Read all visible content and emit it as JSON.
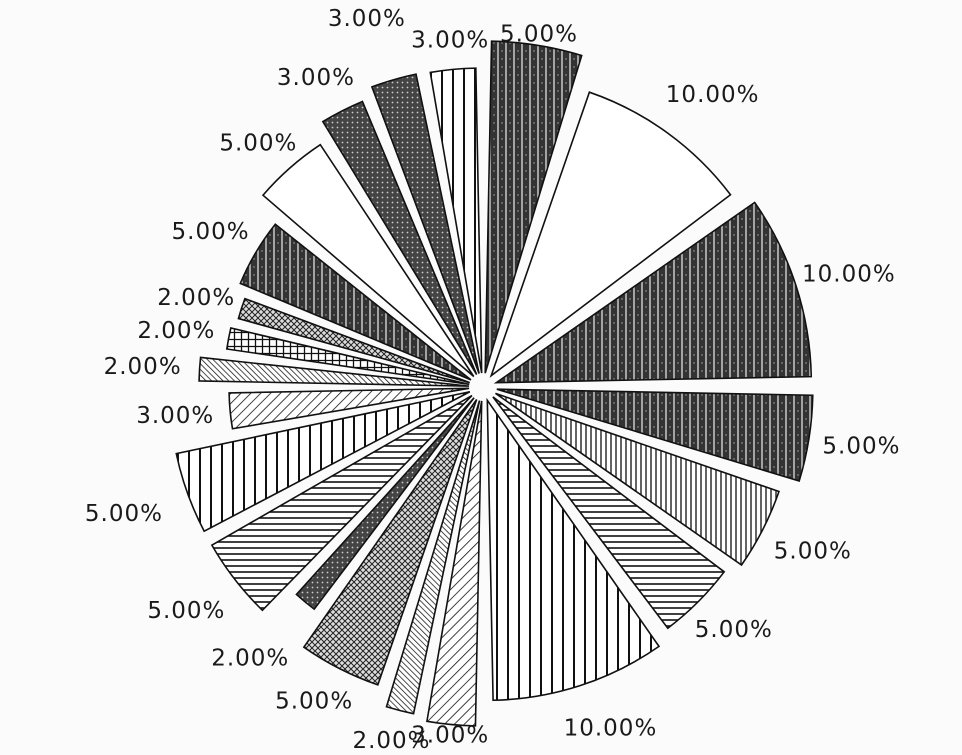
{
  "chart_data": {
    "type": "pie",
    "title": "",
    "slices": [
      {
        "label": "5.00%",
        "value": 5,
        "pattern": "dark-vertical"
      },
      {
        "label": "10.00%",
        "value": 10,
        "pattern": "white"
      },
      {
        "label": "10.00%",
        "value": 10,
        "pattern": "dark-vertical"
      },
      {
        "label": "5.00%",
        "value": 5,
        "pattern": "dark-vertical"
      },
      {
        "label": "5.00%",
        "value": 5,
        "pattern": "vertical-dense"
      },
      {
        "label": "5.00%",
        "value": 5,
        "pattern": "horizontal"
      },
      {
        "label": "10.00%",
        "value": 10,
        "pattern": "vertical"
      },
      {
        "label": "3.00%",
        "value": 3,
        "pattern": "diagonal"
      },
      {
        "label": "2.00%",
        "value": 2,
        "pattern": "diagonal-dense"
      },
      {
        "label": "5.00%",
        "value": 5,
        "pattern": "crosshatch"
      },
      {
        "label": "2.00%",
        "value": 2,
        "pattern": "dark-dots"
      },
      {
        "label": "5.00%",
        "value": 5,
        "pattern": "horizontal"
      },
      {
        "label": "5.00%",
        "value": 5,
        "pattern": "vertical"
      },
      {
        "label": "3.00%",
        "value": 3,
        "pattern": "diagonal"
      },
      {
        "label": "2.00%",
        "value": 2,
        "pattern": "diagonal-dense"
      },
      {
        "label": "2.00%",
        "value": 2,
        "pattern": "grid"
      },
      {
        "label": "2.00%",
        "value": 2,
        "pattern": "crosshatch"
      },
      {
        "label": "5.00%",
        "value": 5,
        "pattern": "dark-vertical"
      },
      {
        "label": "5.00%",
        "value": 5,
        "pattern": "white"
      },
      {
        "label": "3.00%",
        "value": 3,
        "pattern": "dark-dots"
      },
      {
        "label": "3.00%",
        "value": 3,
        "pattern": "dark-dots"
      },
      {
        "label": "3.00%",
        "value": 3,
        "pattern": "vertical"
      }
    ]
  }
}
